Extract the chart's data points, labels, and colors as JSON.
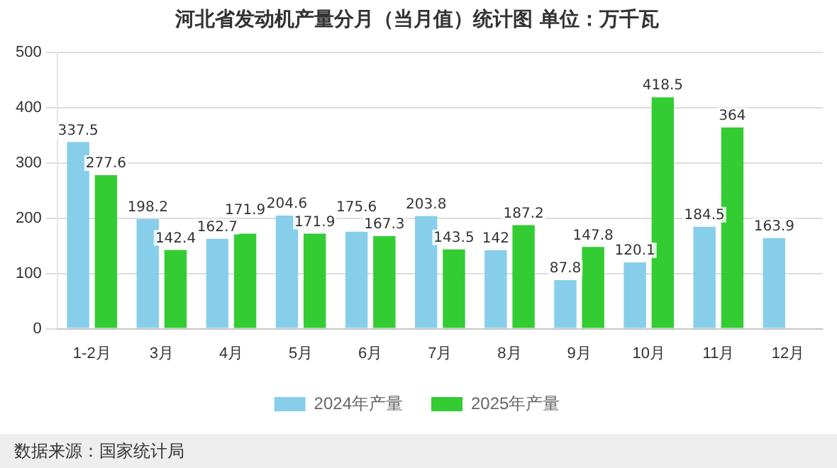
{
  "chart_data": {
    "type": "bar",
    "title": "河北省发动机产量分月（当月值）统计图 单位：万千瓦",
    "categories": [
      "1-2月",
      "3月",
      "4月",
      "5月",
      "6月",
      "7月",
      "8月",
      "9月",
      "10月",
      "11月",
      "12月"
    ],
    "series": [
      {
        "name": "2024年产量",
        "color": "#87ceeb",
        "values": [
          337.5,
          198.2,
          162.7,
          204.6,
          175.6,
          203.8,
          142,
          87.8,
          120.1,
          184.5,
          163.9
        ]
      },
      {
        "name": "2025年产量",
        "color": "#33cc33",
        "values": [
          277.6,
          142.4,
          171.9,
          171.9,
          167.3,
          143.5,
          187.2,
          147.8,
          418.5,
          364,
          null
        ]
      }
    ],
    "ylim": [
      0,
      500
    ],
    "yticks": [
      0,
      100,
      200,
      300,
      400,
      500
    ],
    "grid": "y",
    "legend": "bottom",
    "data_labels": true,
    "annotations": [
      "数据来源：国家统计局"
    ]
  }
}
